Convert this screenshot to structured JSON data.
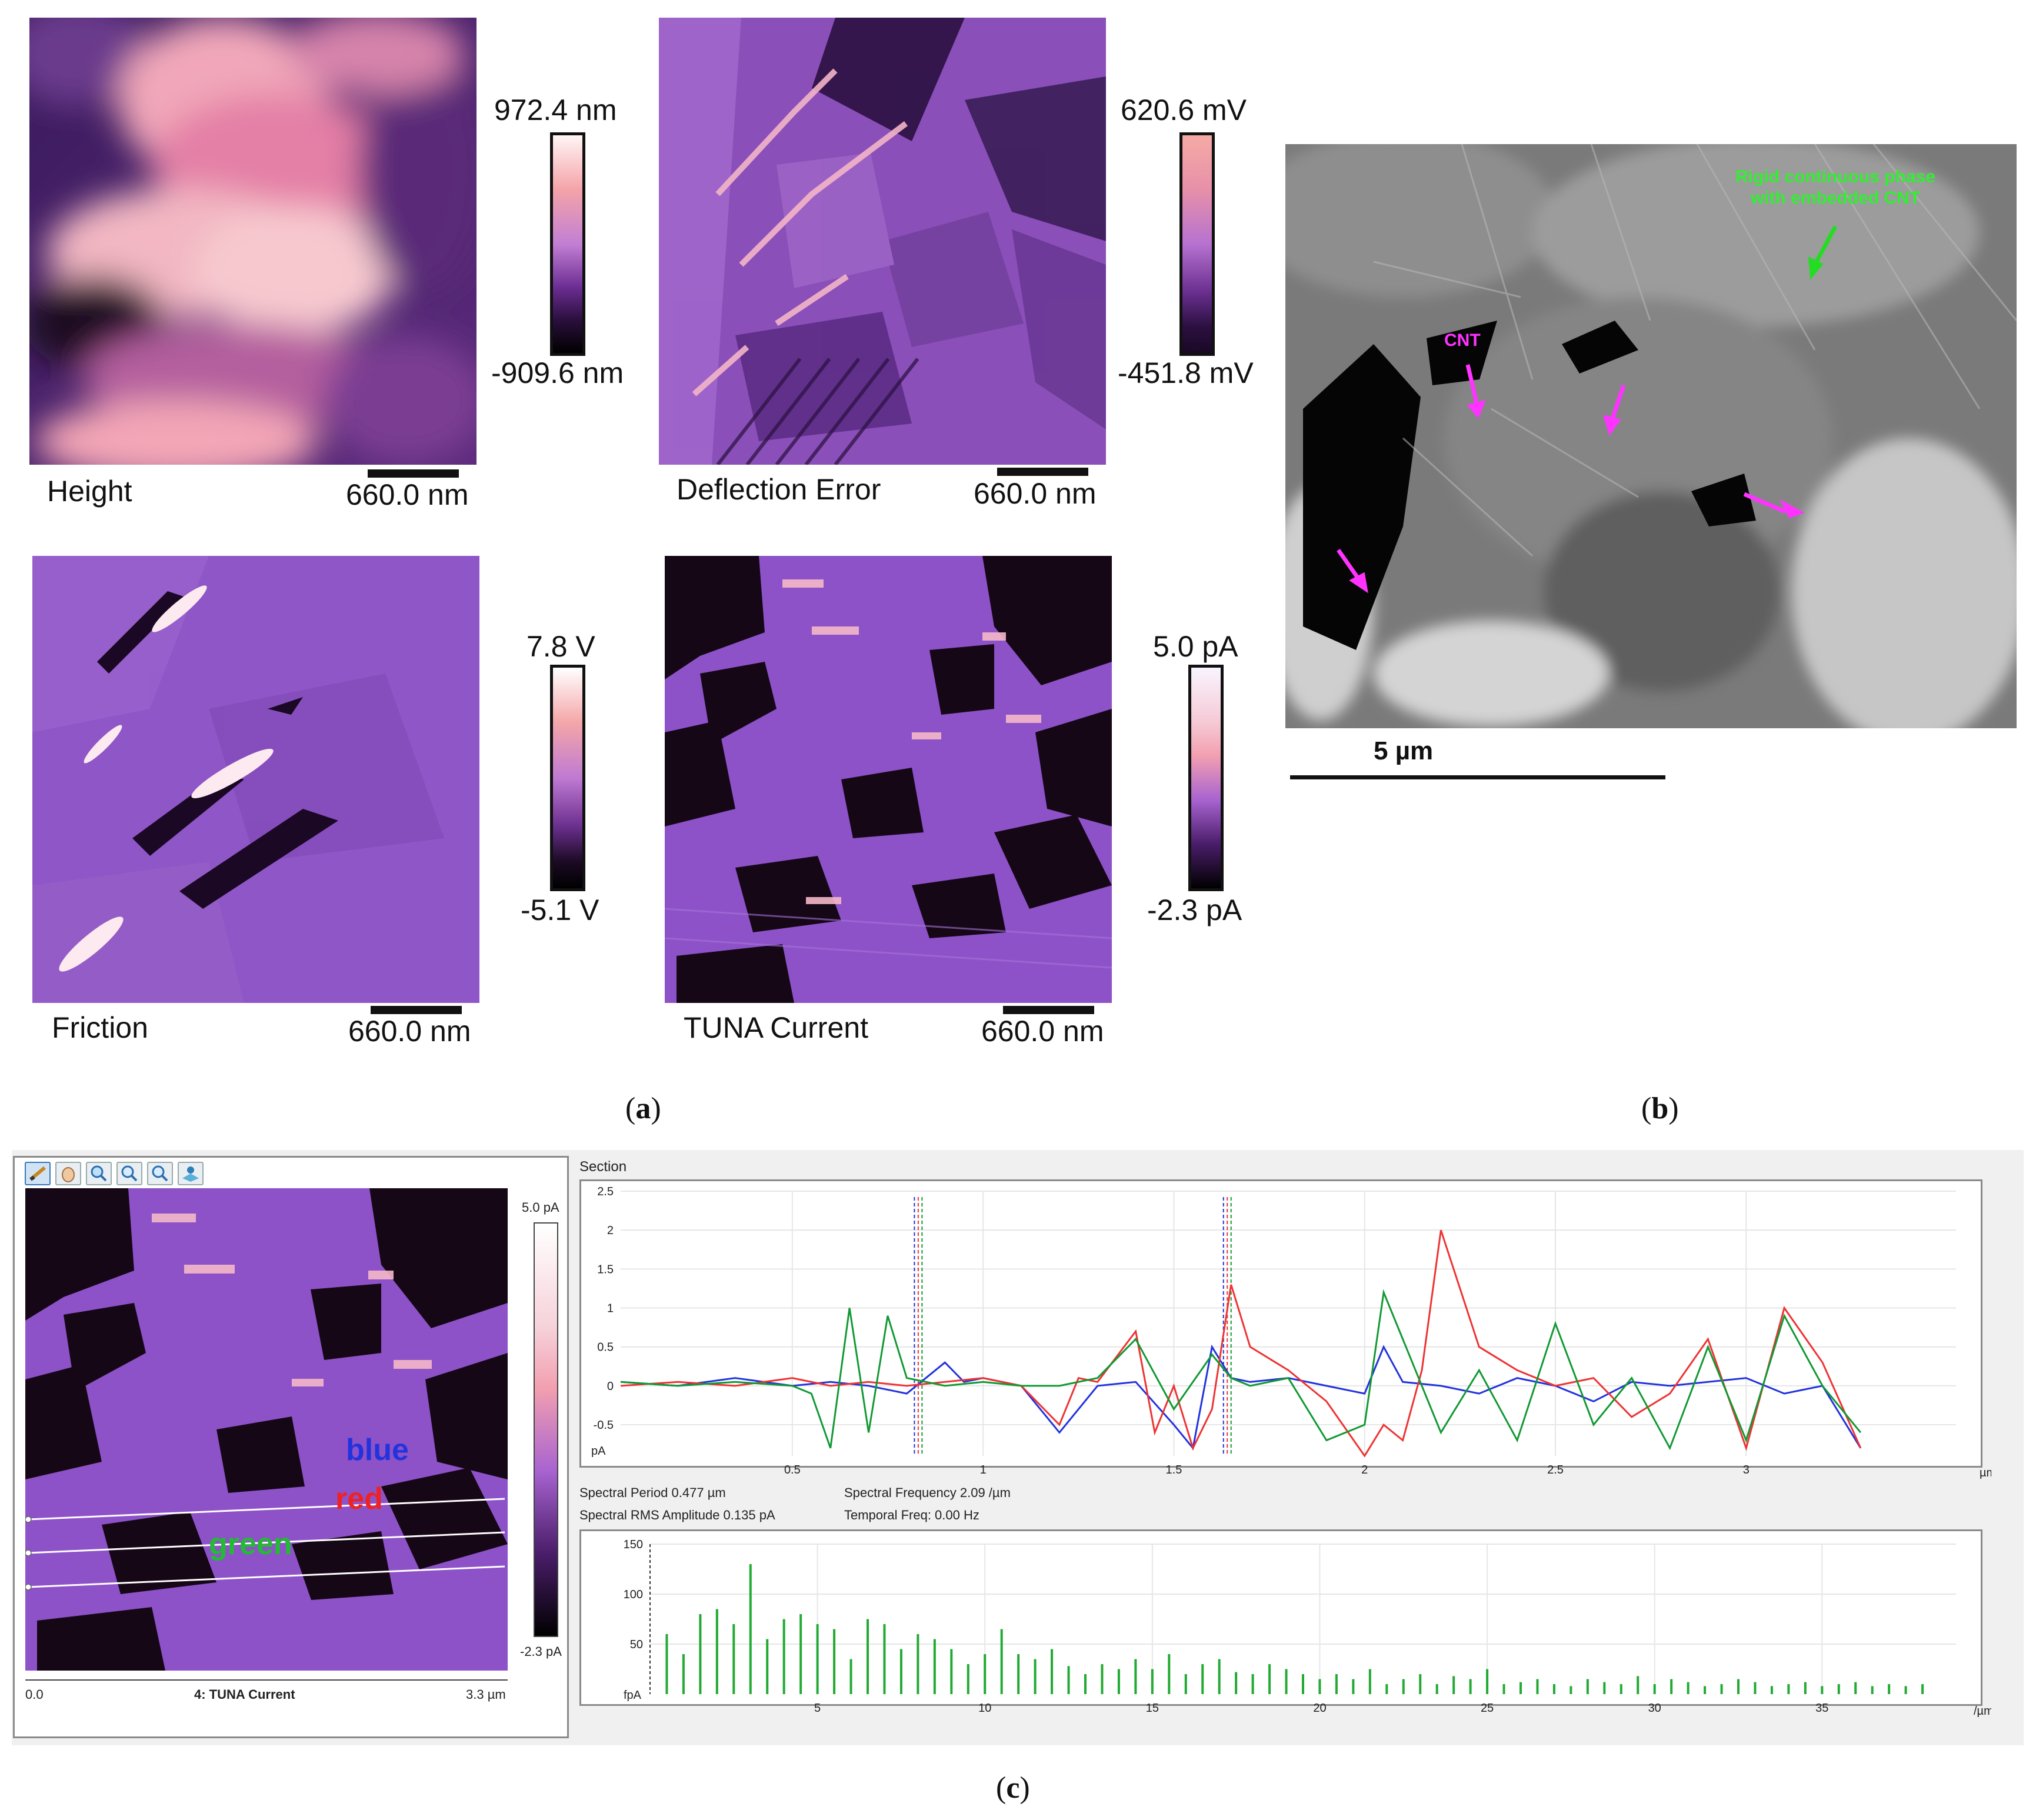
{
  "panel_a": {
    "height": {
      "label": "Height",
      "scale": "660.0 nm",
      "max": "972.4 nm",
      "min": "-909.6 nm"
    },
    "deflection": {
      "label": "Deflection Error",
      "scale": "660.0 nm",
      "max": "620.6 mV",
      "min": "-451.8 mV"
    },
    "friction": {
      "label": "Friction",
      "scale": "660.0 nm",
      "max": "7.8 V",
      "min": "-5.1 V"
    },
    "tuna": {
      "label": "TUNA Current",
      "scale": "660.0 nm",
      "max": "5.0 pA",
      "min": "-2.3 pA"
    }
  },
  "panel_b": {
    "annotation_green": [
      "Rigid continuous phase",
      "with embedded CNT"
    ],
    "annotation_cnt": "CNT",
    "scale": "5 µm"
  },
  "captions": {
    "a": "a",
    "b": "b",
    "c": "c"
  },
  "panel_c": {
    "image_title": "4: TUNA Current",
    "axis_start": "0.0",
    "axis_end": "3.3 µm",
    "colorbar_max": "5.0 pA",
    "colorbar_min": "-2.3 pA",
    "line_labels": {
      "blue": "blue",
      "red": "red",
      "green": "green"
    },
    "section_title": "Section",
    "spectral": {
      "period": "Spectral Period 0.477 µm",
      "frequency": "Spectral Frequency 2.09 /µm",
      "rms": "Spectral RMS Amplitude 0.135 pA",
      "temporal": "Temporal Freq: 0.00 Hz"
    },
    "colors": {
      "blue": "#2233dd",
      "red": "#ee3333",
      "green": "#119933"
    }
  },
  "chart_data": [
    {
      "type": "line",
      "xlabel": "µm",
      "ylabel": "pA",
      "xlim": [
        0.05,
        3.55
      ],
      "ylim": [
        -0.9,
        2.5
      ],
      "x_ticks": [
        "0.5",
        "1",
        "1.5",
        "2",
        "2.5",
        "3"
      ],
      "y_ticks": [
        "2.5",
        "2",
        "1.5",
        "1",
        "0.5",
        "0",
        "-0.5"
      ],
      "grid": true,
      "series": [
        {
          "name": "blue",
          "x": [
            0.05,
            0.2,
            0.35,
            0.5,
            0.6,
            0.7,
            0.8,
            0.9,
            0.95,
            1.0,
            1.1,
            1.2,
            1.3,
            1.4,
            1.5,
            1.55,
            1.6,
            1.65,
            1.7,
            1.8,
            1.9,
            2.0,
            2.05,
            2.1,
            2.2,
            2.3,
            2.4,
            2.5,
            2.6,
            2.7,
            2.8,
            2.9,
            3.0,
            3.1,
            3.2,
            3.3
          ],
          "y": [
            0.05,
            0.0,
            0.1,
            0.0,
            0.05,
            0.0,
            -0.1,
            0.3,
            0.05,
            0.1,
            0.0,
            -0.6,
            0.0,
            0.05,
            -0.5,
            -0.8,
            0.5,
            0.1,
            0.05,
            0.1,
            0.0,
            -0.1,
            0.5,
            0.05,
            0.0,
            -0.1,
            0.1,
            0.0,
            -0.2,
            0.05,
            0.0,
            0.05,
            0.1,
            -0.1,
            0.0,
            -0.8
          ]
        },
        {
          "name": "red",
          "x": [
            0.05,
            0.2,
            0.35,
            0.5,
            0.6,
            0.7,
            0.8,
            0.9,
            1.0,
            1.1,
            1.2,
            1.25,
            1.3,
            1.4,
            1.45,
            1.5,
            1.55,
            1.6,
            1.65,
            1.7,
            1.8,
            1.9,
            2.0,
            2.05,
            2.1,
            2.15,
            2.2,
            2.3,
            2.4,
            2.5,
            2.6,
            2.7,
            2.8,
            2.9,
            3.0,
            3.1,
            3.2,
            3.3
          ],
          "y": [
            0.0,
            0.05,
            0.0,
            0.1,
            0.0,
            0.05,
            0.0,
            0.05,
            0.1,
            0.0,
            -0.5,
            0.1,
            0.05,
            0.7,
            -0.6,
            0.0,
            -0.8,
            -0.3,
            1.3,
            0.5,
            0.2,
            -0.2,
            -0.9,
            -0.5,
            -0.7,
            0.2,
            2.0,
            0.5,
            0.2,
            0.0,
            0.1,
            -0.4,
            -0.1,
            0.6,
            -0.8,
            1.0,
            0.3,
            -0.8
          ]
        },
        {
          "name": "green",
          "x": [
            0.05,
            0.2,
            0.35,
            0.5,
            0.55,
            0.6,
            0.65,
            0.7,
            0.75,
            0.8,
            0.9,
            1.0,
            1.1,
            1.2,
            1.3,
            1.4,
            1.5,
            1.6,
            1.65,
            1.7,
            1.8,
            1.9,
            2.0,
            2.05,
            2.1,
            2.2,
            2.3,
            2.4,
            2.5,
            2.6,
            2.7,
            2.8,
            2.9,
            3.0,
            3.1,
            3.2,
            3.3
          ],
          "y": [
            0.05,
            0.0,
            0.05,
            0.0,
            -0.1,
            -0.8,
            1.0,
            -0.6,
            0.9,
            0.1,
            0.0,
            0.05,
            0.0,
            0.0,
            0.1,
            0.6,
            -0.3,
            0.4,
            0.1,
            0.0,
            0.1,
            -0.7,
            -0.5,
            1.2,
            0.6,
            -0.6,
            0.2,
            -0.7,
            0.8,
            -0.5,
            0.1,
            -0.8,
            0.5,
            -0.7,
            0.9,
            0.0,
            -0.6
          ]
        }
      ]
    },
    {
      "type": "bar",
      "xlabel": "/µm",
      "ylabel": "fpA",
      "xlim": [
        0,
        39
      ],
      "ylim": [
        0,
        150
      ],
      "x_ticks": [
        "5",
        "10",
        "15",
        "20",
        "25",
        "30",
        "35"
      ],
      "y_ticks": [
        "150",
        "100",
        "50"
      ],
      "grid": true,
      "x": [
        0.5,
        1,
        1.5,
        2,
        2.5,
        3,
        3.5,
        4,
        4.5,
        5,
        5.5,
        6,
        6.5,
        7,
        7.5,
        8,
        8.5,
        9,
        9.5,
        10,
        10.5,
        11,
        11.5,
        12,
        12.5,
        13,
        13.5,
        14,
        14.5,
        15,
        15.5,
        16,
        16.5,
        17,
        17.5,
        18,
        18.5,
        19,
        19.5,
        20,
        20.5,
        21,
        21.5,
        22,
        22.5,
        23,
        23.5,
        24,
        24.5,
        25,
        25.5,
        26,
        26.5,
        27,
        27.5,
        28,
        28.5,
        29,
        29.5,
        30,
        30.5,
        31,
        31.5,
        32,
        32.5,
        33,
        33.5,
        34,
        34.5,
        35,
        35.5,
        36,
        36.5,
        37,
        37.5,
        38
      ],
      "values": [
        60,
        40,
        80,
        85,
        70,
        130,
        55,
        75,
        80,
        70,
        65,
        35,
        75,
        70,
        45,
        60,
        55,
        45,
        30,
        40,
        65,
        40,
        35,
        45,
        28,
        20,
        30,
        25,
        35,
        25,
        40,
        20,
        30,
        35,
        22,
        20,
        30,
        25,
        20,
        15,
        20,
        15,
        25,
        10,
        15,
        20,
        10,
        18,
        15,
        25,
        10,
        12,
        15,
        10,
        8,
        15,
        12,
        10,
        18,
        10,
        15,
        12,
        8,
        10,
        15,
        12,
        8,
        10,
        12,
        8,
        10,
        12,
        8,
        10,
        8,
        10
      ]
    }
  ]
}
